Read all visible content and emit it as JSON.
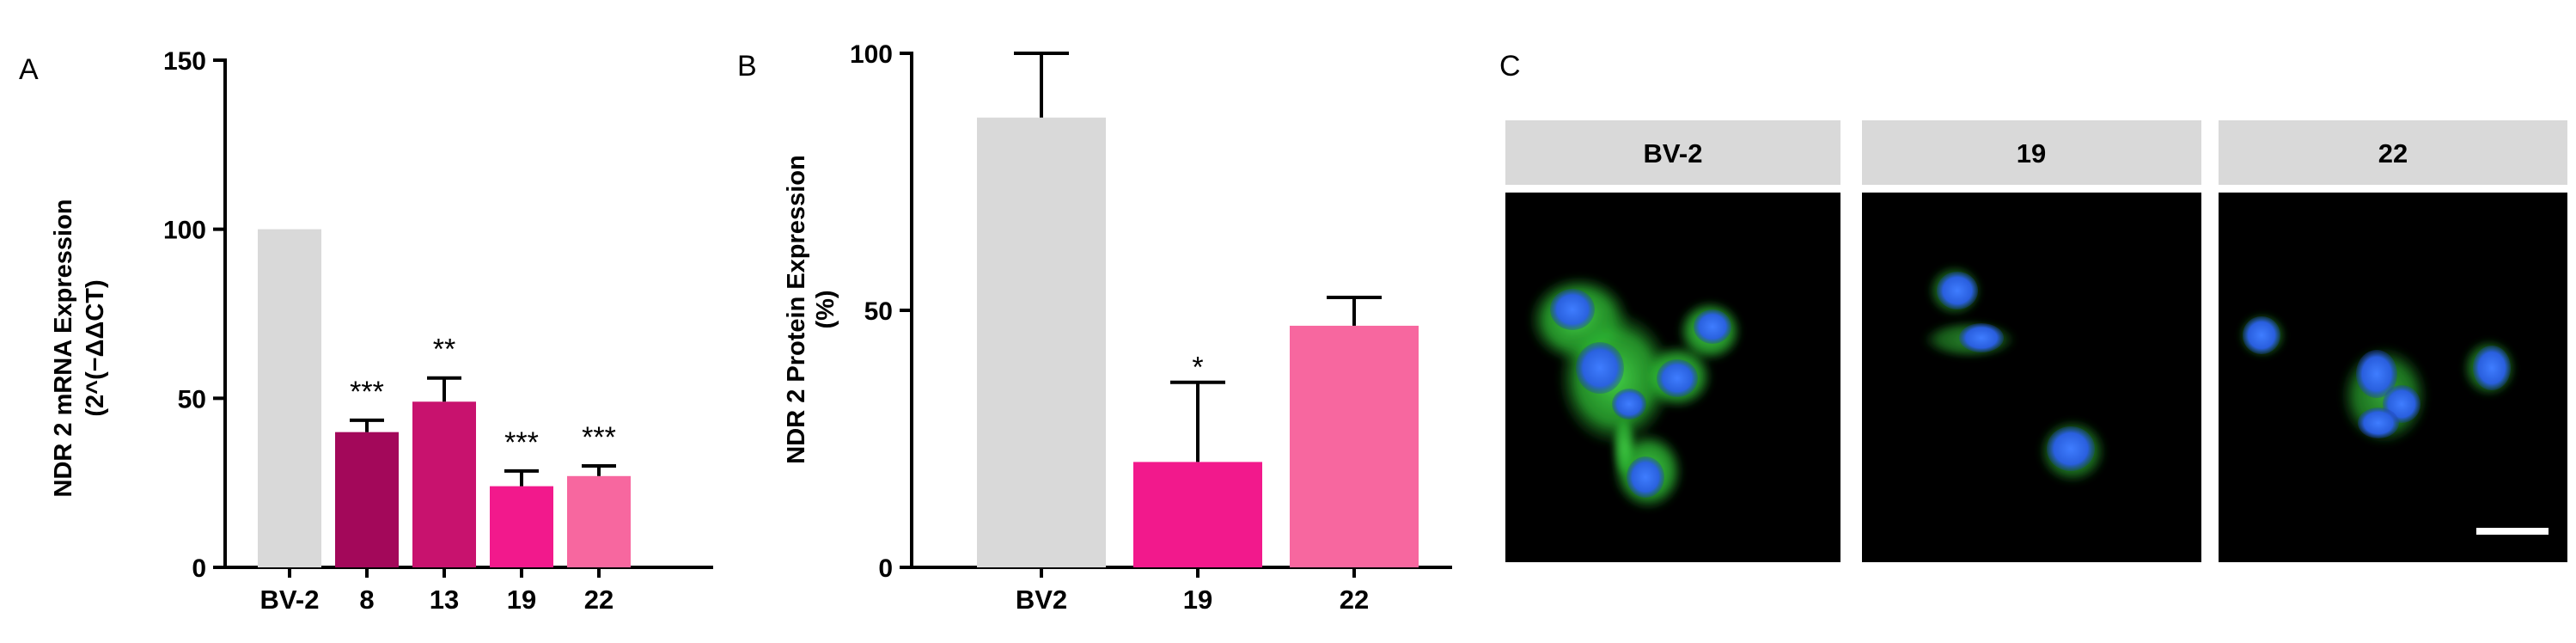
{
  "panels": {
    "a": "A",
    "b": "B",
    "c": "C"
  },
  "chart_data": [
    {
      "type": "bar",
      "panel": "A",
      "ylabel_line1": "NDR 2 mRNA Expression",
      "ylabel_line2": "(2^(−ΔΔCT)",
      "ylim": [
        0,
        150
      ],
      "yticks": [
        0,
        50,
        100,
        150
      ],
      "categories": [
        "BV-2",
        "8",
        "13",
        "19",
        "22"
      ],
      "values": [
        100,
        40,
        49,
        24,
        27
      ],
      "errors": [
        0,
        3.5,
        7,
        4.5,
        3
      ],
      "significance": [
        "",
        "***",
        "**",
        "***",
        "***"
      ],
      "colors": [
        "#d9d9d9",
        "#a3085a",
        "#c8126e",
        "#f2198c",
        "#f7679f"
      ],
      "grid": false
    },
    {
      "type": "bar",
      "panel": "B",
      "ylabel_line1": "NDR 2 Protein Expression",
      "ylabel_line2": "(%)",
      "ylim": [
        0,
        100
      ],
      "yticks": [
        0,
        50,
        100
      ],
      "categories": [
        "BV2",
        "19",
        "22"
      ],
      "values": [
        87.5,
        20.5,
        47
      ],
      "errors": [
        12.5,
        15.5,
        5.5
      ],
      "significance": [
        "",
        "*",
        ""
      ],
      "colors": [
        "#d9d9d9",
        "#f2198c",
        "#f7679f"
      ],
      "grid": false
    }
  ],
  "micrographs": {
    "headers": [
      "BV-2",
      "19",
      "22"
    ],
    "header_bg": "#d9d9d9",
    "image_bg": "#000000",
    "nucleus_color": "#2a63ff",
    "cytoplasm_color": "#2fc232",
    "scale_bar_color": "#ffffff"
  }
}
